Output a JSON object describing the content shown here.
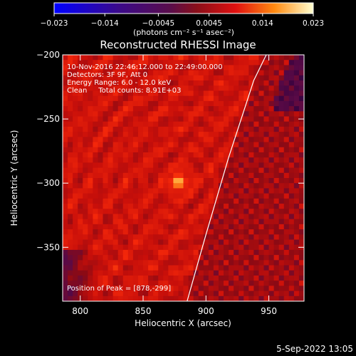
{
  "chart_data": {
    "type": "heatmap",
    "title": "Reconstructed RHESSI Image",
    "xlabel": "Heliocentric X (arcsec)",
    "ylabel": "Heliocentric Y (arcsec)",
    "xlim": [
      786,
      978
    ],
    "ylim": [
      -392,
      -200
    ],
    "x_ticks": [
      800,
      850,
      900,
      950
    ],
    "x_tick_labels": [
      "800",
      "850",
      "900",
      "950"
    ],
    "y_ticks": [
      -200,
      -250,
      -300,
      -350
    ],
    "y_tick_labels": [
      "−200",
      "−250",
      "−300",
      "−350"
    ],
    "colorbar": {
      "colormap": "red-temperature",
      "range": [
        -0.023,
        0.023
      ],
      "ticks": [
        -0.023,
        -0.014,
        -0.0045,
        0.0045,
        0.014,
        0.023
      ],
      "tick_labels": [
        "−0.023",
        "−0.014",
        "−0.0045",
        "0.0045",
        "0.014",
        "0.023"
      ],
      "unit_label": "(photons cm⁻² s⁻¹ asec⁻²)"
    },
    "annotations": [
      "10-Nov-2016 22:46:12.000 to 22:49:00.000",
      "Detectors: 3F 9F, Att 0",
      "Energy Range: 6.0 - 12.0 keV",
      "Clean     Total counts: 8.91E+03"
    ],
    "peak": {
      "label": "Position of Peak = [878,-299]",
      "x": 878,
      "y": -299
    },
    "limb_curve": [
      [
        885,
        -392
      ],
      [
        900,
        -340
      ],
      [
        918,
        -280
      ],
      [
        938,
        -220
      ],
      [
        948,
        -200
      ]
    ]
  },
  "footer": {
    "date": "5-Sep-2022 13:05"
  }
}
